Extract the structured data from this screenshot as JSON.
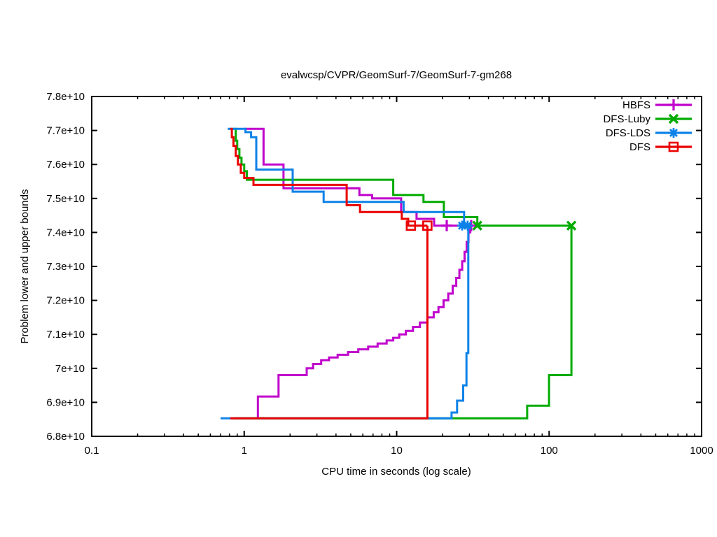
{
  "chart_data": {
    "type": "line",
    "title": "evalwcsp/CVPR/GeomSurf-7/GeomSurf-7-gm268",
    "xlabel": "CPU time in seconds (log scale)",
    "ylabel": "Problem lower and upper bounds",
    "x_scale": "log",
    "grid": "off",
    "legend_position": "top-right-inside",
    "xlim": [
      0.1,
      1000
    ],
    "ylim": [
      68000000000.0,
      78000000000.0
    ],
    "x_ticks": [
      {
        "v": 0.1,
        "label": "0.1"
      },
      {
        "v": 1,
        "label": "1"
      },
      {
        "v": 10,
        "label": "10"
      },
      {
        "v": 100,
        "label": "100"
      },
      {
        "v": 1000,
        "label": "1000"
      }
    ],
    "y_ticks": [
      {
        "v": 68000000000.0,
        "label": "6.8e+10"
      },
      {
        "v": 69000000000.0,
        "label": "6.9e+10"
      },
      {
        "v": 70000000000.0,
        "label": "7e+10"
      },
      {
        "v": 71000000000.0,
        "label": "7.1e+10"
      },
      {
        "v": 72000000000.0,
        "label": "7.2e+10"
      },
      {
        "v": 73000000000.0,
        "label": "7.3e+10"
      },
      {
        "v": 74000000000.0,
        "label": "7.4e+10"
      },
      {
        "v": 75000000000.0,
        "label": "7.5e+10"
      },
      {
        "v": 76000000000.0,
        "label": "7.6e+10"
      },
      {
        "v": 77000000000.0,
        "label": "7.7e+10"
      },
      {
        "v": 78000000000.0,
        "label": "7.8e+10"
      }
    ],
    "series": [
      {
        "name": "HBFS",
        "color": "#c000cc",
        "marker": "plus",
        "upper_bound": [
          [
            1.0,
            77050000000.0
          ],
          [
            1.34,
            76000000000.0
          ],
          [
            1.81,
            75300000000.0
          ],
          [
            5.7,
            75100000000.0
          ],
          [
            6.9,
            75000000000.0
          ],
          [
            10.7,
            74600000000.0
          ],
          [
            13.5,
            74400000000.0
          ],
          [
            17.6,
            74200000000.0
          ],
          [
            30.8,
            74200000000.0
          ]
        ],
        "lower_bound": [
          [
            1.23,
            68530000000.0
          ],
          [
            1.23,
            69170000000.0
          ],
          [
            1.68,
            69800000000.0
          ],
          [
            2.57,
            70000000000.0
          ],
          [
            2.83,
            70130000000.0
          ],
          [
            3.2,
            70240000000.0
          ],
          [
            3.6,
            70320000000.0
          ],
          [
            4.1,
            70400000000.0
          ],
          [
            4.8,
            70480000000.0
          ],
          [
            5.6,
            70560000000.0
          ],
          [
            6.5,
            70640000000.0
          ],
          [
            7.5,
            70730000000.0
          ],
          [
            8.6,
            70820000000.0
          ],
          [
            9.5,
            70900000000.0
          ],
          [
            10.4,
            71000000000.0
          ],
          [
            11.5,
            71100000000.0
          ],
          [
            12.8,
            71220000000.0
          ],
          [
            14.2,
            71350000000.0
          ],
          [
            15.9,
            71500000000.0
          ],
          [
            17.5,
            71650000000.0
          ],
          [
            18.8,
            71800000000.0
          ],
          [
            20.3,
            72000000000.0
          ],
          [
            21.8,
            72200000000.0
          ],
          [
            23.3,
            72430000000.0
          ],
          [
            24.6,
            72660000000.0
          ],
          [
            25.8,
            72900000000.0
          ],
          [
            26.9,
            73150000000.0
          ],
          [
            27.9,
            73430000000.0
          ],
          [
            28.8,
            73720000000.0
          ],
          [
            29.6,
            74000000000.0
          ],
          [
            30.4,
            74100000000.0
          ],
          [
            30.8,
            74200000000.0
          ]
        ],
        "marker_points": [
          [
            21.3,
            74200000000.0
          ],
          [
            30.8,
            74200000000.0
          ]
        ]
      },
      {
        "name": "DFS-Luby",
        "color": "#00ab00",
        "marker": "cross",
        "upper_bound": [
          [
            0.85,
            77050000000.0
          ],
          [
            0.88,
            76700000000.0
          ],
          [
            0.9,
            76450000000.0
          ],
          [
            0.93,
            76200000000.0
          ],
          [
            0.96,
            76000000000.0
          ],
          [
            1.0,
            75800000000.0
          ],
          [
            1.04,
            75550000000.0
          ],
          [
            9.5,
            75100000000.0
          ],
          [
            15.0,
            74900000000.0
          ],
          [
            20.4,
            74450000000.0
          ],
          [
            33.8,
            74200000000.0
          ],
          [
            140,
            74200000000.0
          ]
        ],
        "lower_bound": [
          [
            0.85,
            68530000000.0
          ],
          [
            71.8,
            68900000000.0
          ],
          [
            99.8,
            69800000000.0
          ],
          [
            140,
            74200000000.0
          ]
        ],
        "marker_points": [
          [
            33.8,
            74200000000.0
          ],
          [
            140,
            74200000000.0
          ]
        ]
      },
      {
        "name": "DFS-LDS",
        "color": "#0c82e8",
        "marker": "star",
        "upper_bound": [
          [
            0.78,
            77050000000.0
          ],
          [
            1.02,
            76950000000.0
          ],
          [
            1.11,
            76800000000.0
          ],
          [
            1.2,
            75850000000.0
          ],
          [
            2.08,
            75200000000.0
          ],
          [
            3.32,
            74900000000.0
          ],
          [
            11.1,
            74600000000.0
          ],
          [
            27.7,
            74200000000.0
          ],
          [
            28.4,
            74200000000.0
          ]
        ],
        "lower_bound": [
          [
            0.7,
            68530000000.0
          ],
          [
            22.9,
            68700000000.0
          ],
          [
            24.9,
            69050000000.0
          ],
          [
            27.3,
            69500000000.0
          ],
          [
            28.7,
            70450000000.0
          ],
          [
            29.5,
            74200000000.0
          ]
        ],
        "marker_points": [
          [
            26.9,
            74200000000.0
          ],
          [
            29.2,
            74200000000.0
          ]
        ]
      },
      {
        "name": "DFS",
        "color": "#ea0000",
        "marker": "square",
        "upper_bound": [
          [
            0.81,
            77050000000.0
          ],
          [
            0.83,
            76800000000.0
          ],
          [
            0.85,
            76550000000.0
          ],
          [
            0.88,
            76250000000.0
          ],
          [
            0.91,
            76000000000.0
          ],
          [
            0.95,
            75750000000.0
          ],
          [
            1.0,
            75600000000.0
          ],
          [
            1.15,
            75400000000.0
          ],
          [
            4.7,
            74800000000.0
          ],
          [
            5.75,
            74600000000.0
          ],
          [
            10.8,
            74400000000.0
          ],
          [
            11.9,
            74200000000.0
          ],
          [
            15.9,
            74200000000.0
          ]
        ],
        "lower_bound": [
          [
            0.81,
            68530000000.0
          ],
          [
            15.9,
            74200000000.0
          ]
        ],
        "marker_points": [
          [
            12.4,
            74200000000.0
          ],
          [
            15.9,
            74200000000.0
          ]
        ]
      }
    ]
  }
}
